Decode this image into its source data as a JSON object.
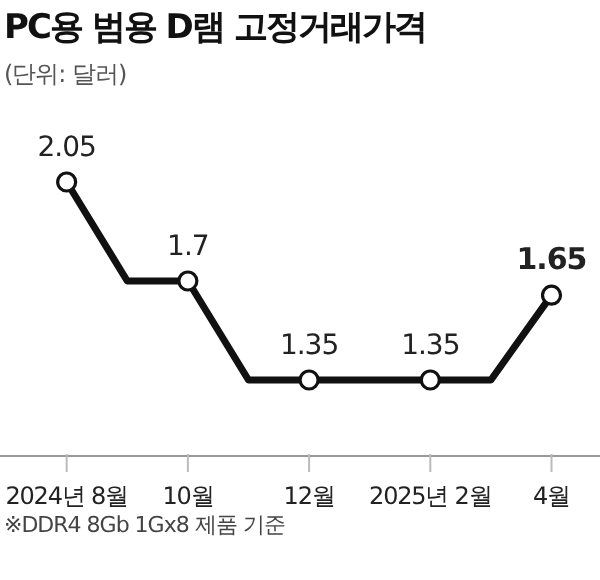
{
  "chart_data": {
    "type": "line",
    "title": "PC용 범용 D램 고정거래가격",
    "subtitle": "(단위: 달러)",
    "categories": [
      "2024년 8월",
      null,
      "10월",
      null,
      "12월",
      null,
      "2025년 2월",
      null,
      "4월"
    ],
    "series": [
      {
        "color": "#111111",
        "values": [
          2.05,
          1.7,
          1.7,
          1.35,
          1.35,
          1.35,
          1.35,
          1.35,
          1.65
        ],
        "value_labels": [
          "2.05",
          null,
          "1.7",
          null,
          "1.35",
          null,
          "1.35",
          null,
          "1.65"
        ]
      }
    ],
    "marker": "circle",
    "tick_labels": "x",
    "annotations": [
      "※DDR4 8Gb 1Gx8 제품 기준"
    ]
  }
}
